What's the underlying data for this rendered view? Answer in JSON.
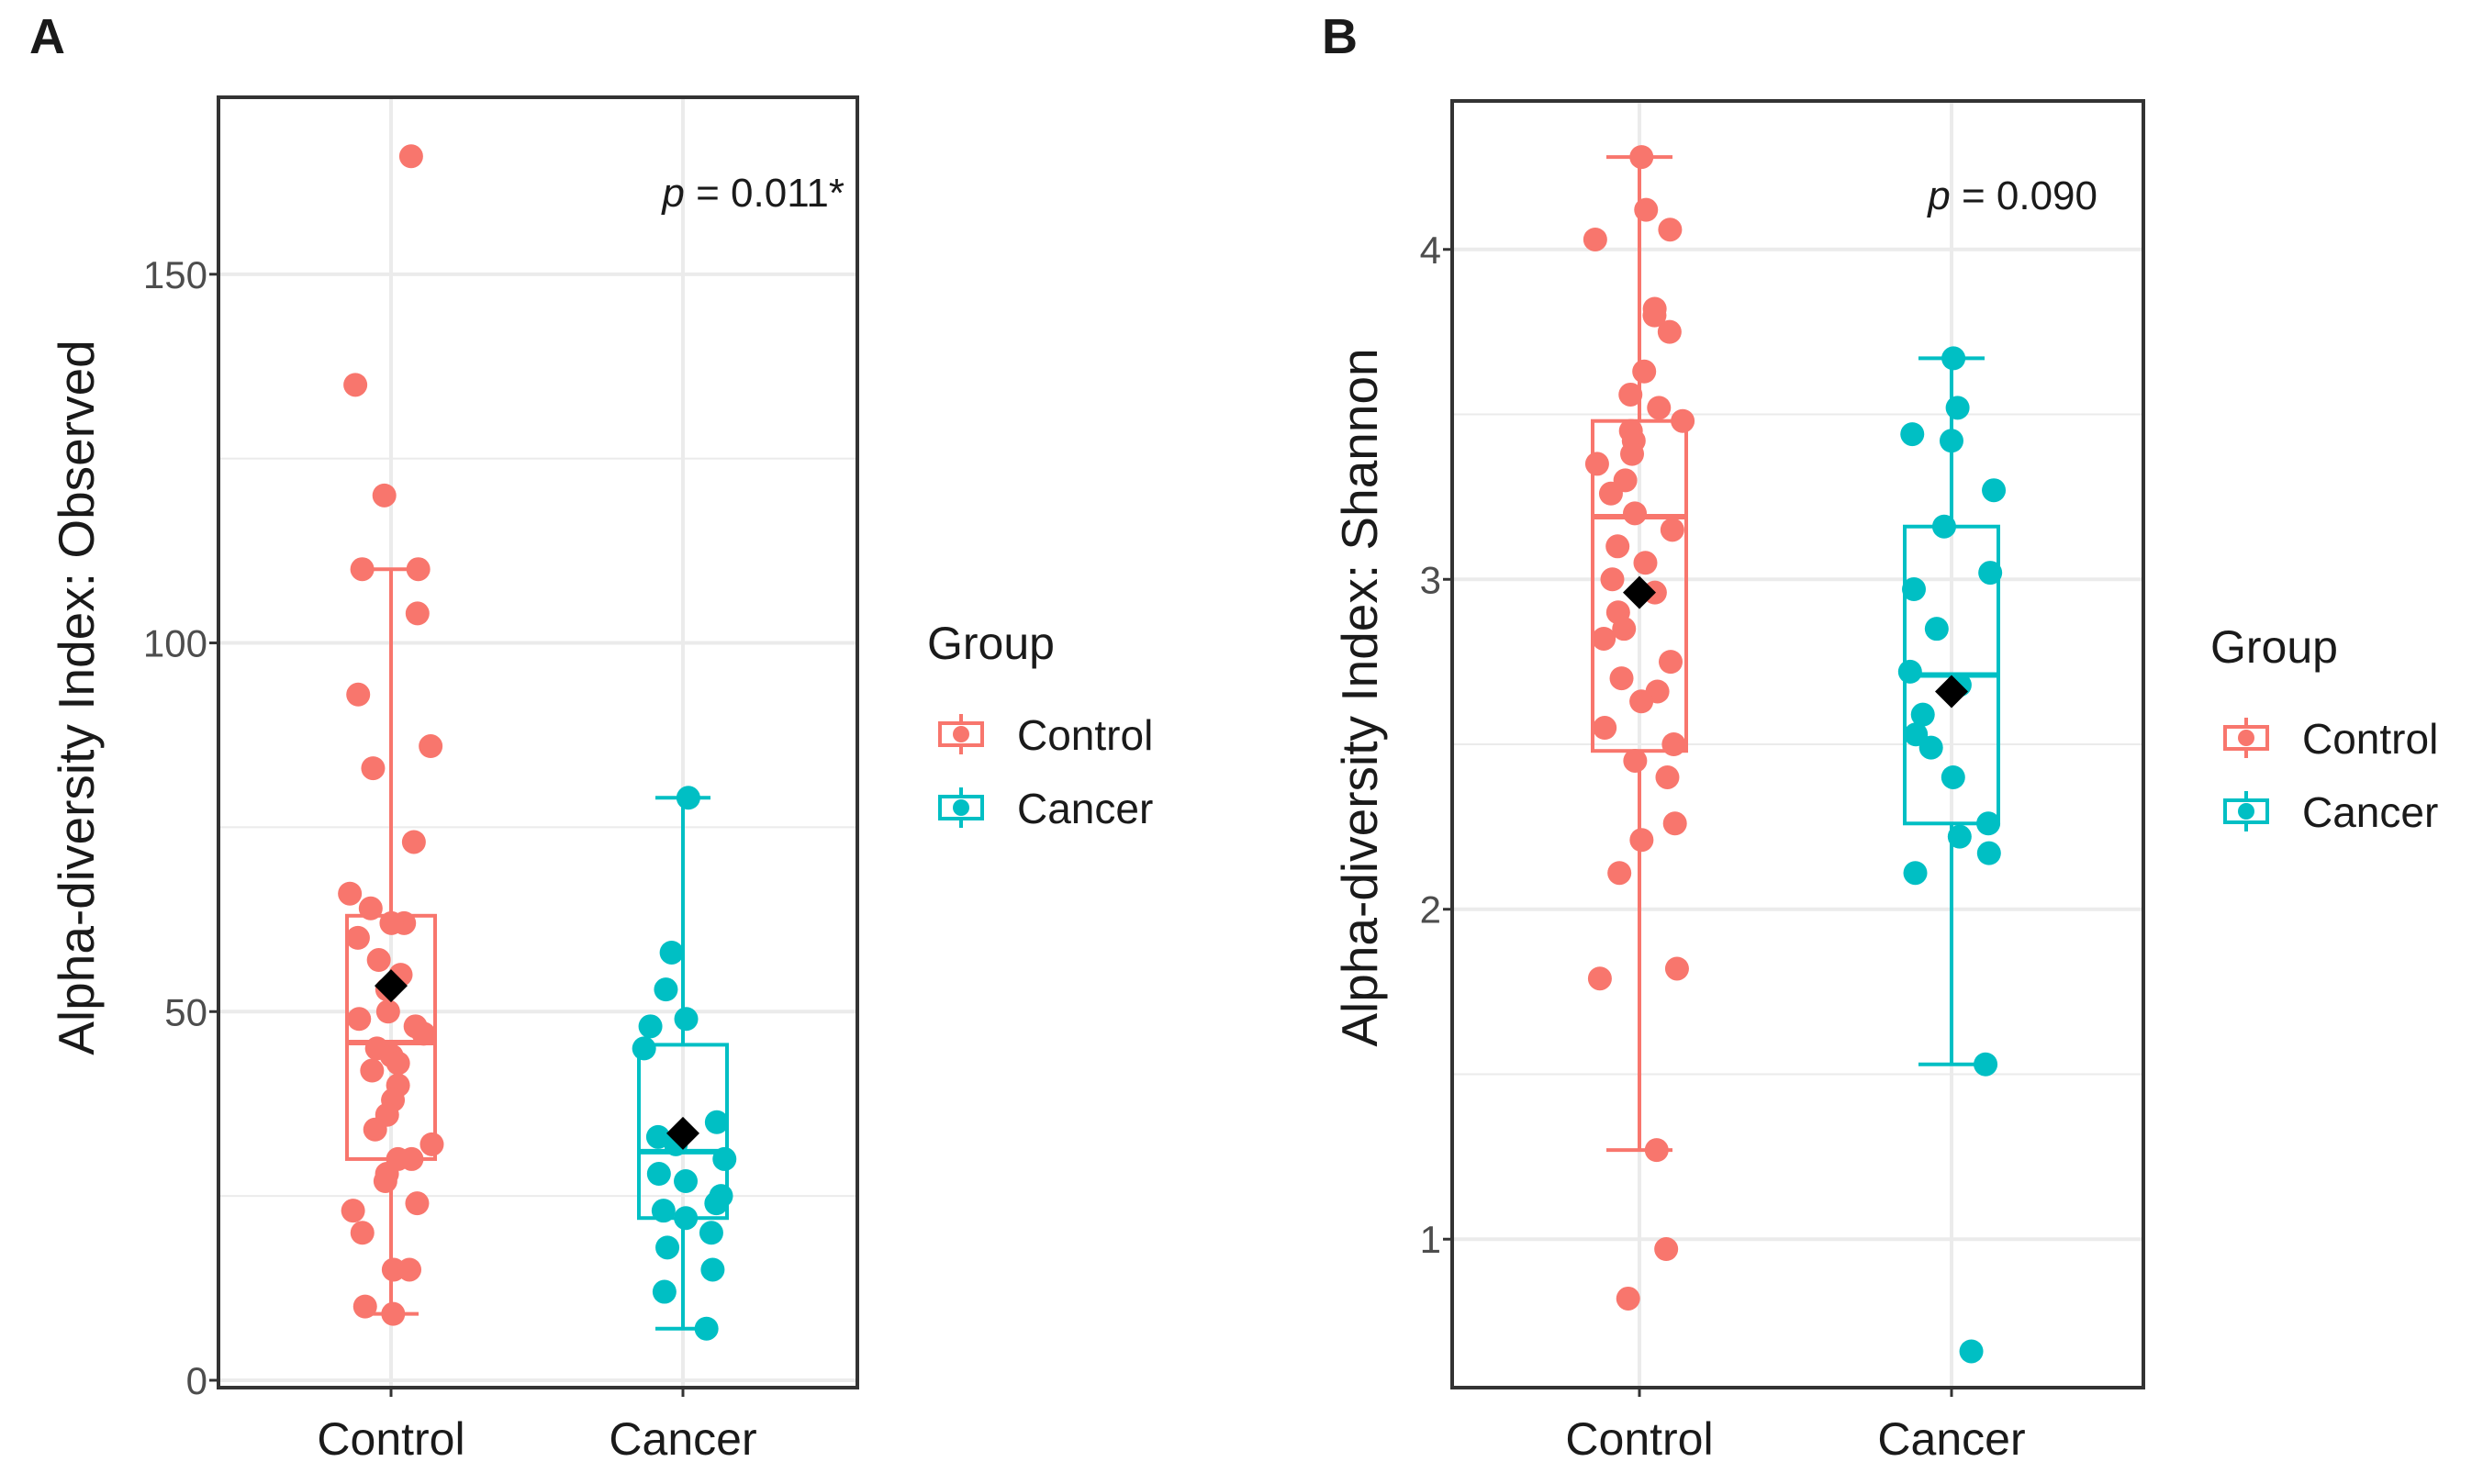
{
  "colors": {
    "control": "#F8766D",
    "cancer": "#00BFC4",
    "mean_marker": "#000000",
    "grid": "#EBEBEB",
    "panel_border": "#333333",
    "text": "#1a1a1a",
    "tick_text": "#4D4D4D"
  },
  "panels": [
    {
      "letter": "A",
      "p_label": "p",
      "p_value": " = 0.011*",
      "legend": {
        "title": "Group",
        "items": [
          "Control",
          "Cancer"
        ]
      }
    },
    {
      "letter": "B",
      "p_label": "p",
      "p_value": " = 0.090",
      "legend": {
        "title": "Group",
        "items": [
          "Control",
          "Cancer"
        ]
      }
    }
  ],
  "chart_data": [
    {
      "type": "boxplot",
      "title": "A",
      "xlabel": "",
      "ylabel": "Alpha-diversity Index: Observed",
      "categories": [
        "Control",
        "Cancer"
      ],
      "ylim": [
        -1,
        174
      ],
      "yticks": [
        0,
        50,
        100,
        150
      ],
      "ytick_labels": [
        "0",
        "50",
        "100",
        "150"
      ],
      "annotation": "p = 0.011*",
      "legend_title": "Group",
      "series": [
        {
          "name": "Control",
          "box": {
            "q1": 30,
            "median": 45.8,
            "q3": 63,
            "whisker_low": 9,
            "whisker_high": 110,
            "mean": 53.5
          },
          "points": [
            166,
            135,
            120,
            110,
            110,
            104,
            93,
            86,
            83,
            73,
            66,
            64,
            62,
            62,
            60,
            57,
            55,
            53,
            50,
            49,
            48,
            47,
            45,
            44,
            43,
            42,
            40,
            38,
            36,
            34,
            32,
            30,
            30,
            28,
            27,
            24,
            23,
            20,
            15,
            15,
            10,
            9
          ]
        },
        {
          "name": "Cancer",
          "box": {
            "q1": 22,
            "median": 31,
            "q3": 45.5,
            "whisker_low": 7,
            "whisker_high": 79,
            "mean": 33.5
          },
          "points": [
            79,
            58,
            53,
            49,
            48,
            45,
            35,
            33,
            32,
            30,
            28,
            27,
            25,
            24,
            23,
            22,
            20,
            18,
            15,
            12,
            7
          ]
        }
      ]
    },
    {
      "type": "boxplot",
      "title": "B",
      "xlabel": "",
      "ylabel": "Alpha-diversity Index: Shannon",
      "categories": [
        "Control",
        "Cancer"
      ],
      "ylim": [
        0.55,
        4.45
      ],
      "yticks": [
        1,
        2,
        3,
        4
      ],
      "ytick_labels": [
        "1",
        "2",
        "3",
        "4"
      ],
      "annotation": "p = 0.090",
      "legend_title": "Group",
      "series": [
        {
          "name": "Control",
          "box": {
            "q1": 2.48,
            "median": 3.19,
            "q3": 3.48,
            "whisker_low": 1.27,
            "whisker_high": 4.28,
            "mean": 2.96
          },
          "points": [
            4.28,
            4.12,
            4.06,
            4.03,
            3.82,
            3.8,
            3.75,
            3.63,
            3.56,
            3.52,
            3.48,
            3.45,
            3.42,
            3.38,
            3.35,
            3.3,
            3.26,
            3.2,
            3.15,
            3.1,
            3.05,
            3.0,
            2.96,
            2.9,
            2.85,
            2.82,
            2.75,
            2.7,
            2.66,
            2.63,
            2.55,
            2.5,
            2.45,
            2.4,
            2.26,
            2.21,
            2.11,
            1.82,
            1.79,
            1.27,
            0.97,
            0.82
          ]
        },
        {
          "name": "Cancer",
          "box": {
            "q1": 2.26,
            "median": 2.71,
            "q3": 3.16,
            "whisker_low": 1.53,
            "whisker_high": 3.67,
            "mean": 2.66
          },
          "points": [
            3.67,
            3.52,
            3.44,
            3.42,
            3.27,
            3.16,
            3.02,
            2.97,
            2.85,
            2.72,
            2.68,
            2.59,
            2.53,
            2.49,
            2.4,
            2.26,
            2.22,
            2.17,
            2.11,
            1.53,
            0.66
          ]
        }
      ]
    }
  ]
}
